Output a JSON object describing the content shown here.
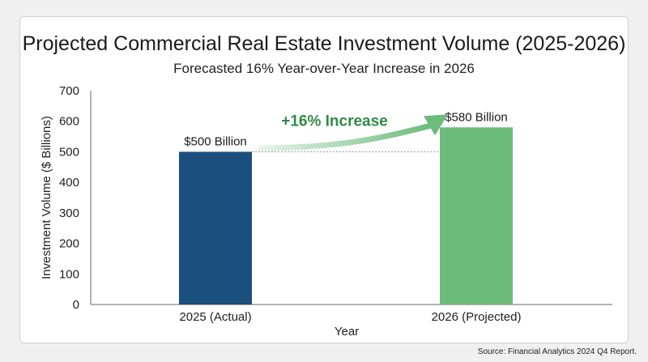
{
  "chart_data": {
    "type": "bar",
    "title": "Projected Commercial Real Estate Investment Volume (2025-2026)",
    "subtitle": "Forecasted 16% Year-over-Year Increase in 2026",
    "xlabel": "Year",
    "ylabel": "Investment Volume ($ Billions)",
    "ylim": [
      0,
      700
    ],
    "yticks": [
      "0",
      "100",
      "200",
      "300",
      "400",
      "500",
      "600",
      "700"
    ],
    "categories": [
      "2025 (Actual)",
      "2026 (Projected)"
    ],
    "values": [
      500,
      580
    ],
    "data_labels": [
      "$500 Billion",
      "$580 Billion"
    ],
    "colors": [
      "#1b4f7e",
      "#6dbb7b"
    ],
    "grid": false,
    "annotation": {
      "text": "+16% Increase",
      "color": "#2f8a45",
      "arrow_color": "#6dbb7b",
      "reference_line_value": 500
    }
  },
  "source_note": "Source: Financial Analytics 2024 Q4 Report."
}
